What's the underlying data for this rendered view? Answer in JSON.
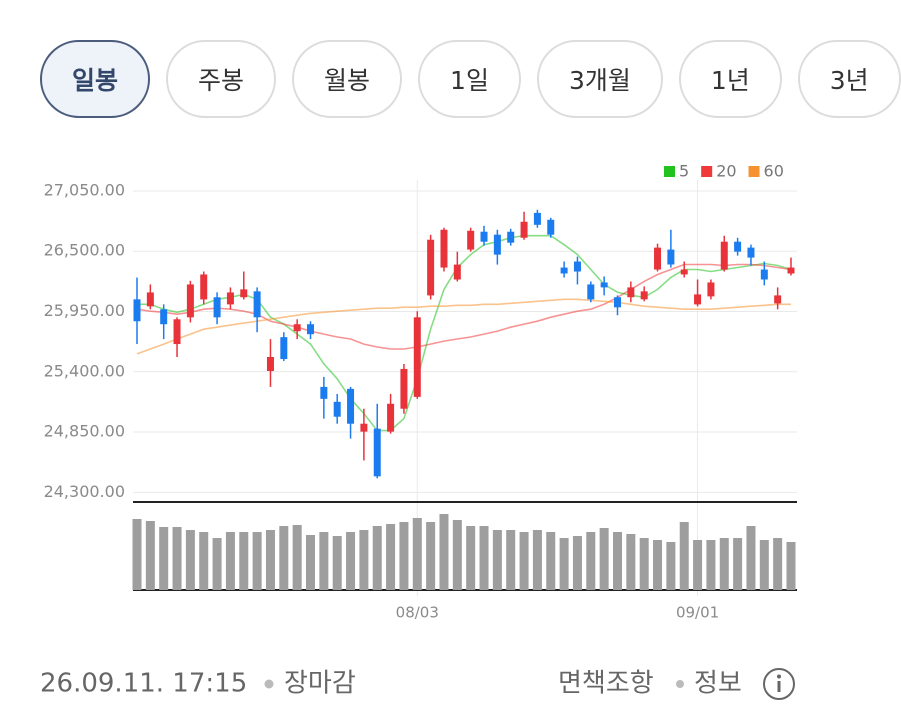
{
  "tabs": [
    {
      "label": "일봉",
      "selected": true
    },
    {
      "label": "주봉",
      "selected": false
    },
    {
      "label": "월봉",
      "selected": false
    },
    {
      "label": "1일",
      "selected": false
    },
    {
      "label": "3개월",
      "selected": false
    },
    {
      "label": "1년",
      "selected": false
    },
    {
      "label": "3년",
      "selected": false
    }
  ],
  "chart_data": {
    "type": "candlestick",
    "categories": [
      null,
      null,
      null,
      null,
      null,
      null,
      null,
      null,
      null,
      null,
      null,
      null,
      null,
      null,
      null,
      null,
      null,
      null,
      null,
      null,
      null,
      "08/03",
      null,
      null,
      null,
      null,
      null,
      null,
      null,
      null,
      null,
      null,
      null,
      null,
      null,
      null,
      null,
      null,
      null,
      null,
      null,
      null,
      "09/01",
      null,
      null,
      null,
      null,
      null,
      null,
      null
    ],
    "open": [
      26061,
      25997,
      25970,
      25653,
      25897,
      26060,
      26080,
      26015,
      26080,
      26134,
      25407,
      25716,
      25770,
      25834,
      25262,
      25126,
      25244,
      24854,
      24881,
      24854,
      25063,
      25171,
      26097,
      26351,
      26242,
      26515,
      26678,
      26651,
      26678,
      26623,
      26850,
      26787,
      26351,
      26406,
      26197,
      26215,
      26080,
      26080,
      26061,
      26333,
      26515,
      26288,
      26015,
      26088,
      26333,
      26587,
      26533,
      26333,
      26024,
      26297
    ],
    "high": [
      26260,
      26197,
      26015,
      25897,
      26230,
      26315,
      26125,
      26170,
      26315,
      26170,
      25698,
      25761,
      25879,
      25861,
      25353,
      25198,
      25262,
      25063,
      25108,
      25198,
      25471,
      25952,
      26650,
      26714,
      26496,
      26714,
      26732,
      26696,
      26705,
      26860,
      26878,
      26805,
      26406,
      26451,
      26224,
      26270,
      26097,
      26224,
      26179,
      26569,
      26696,
      26406,
      26242,
      26242,
      26641,
      26623,
      26560,
      26406,
      26170,
      26442
    ],
    "low": [
      25653,
      25970,
      25698,
      25535,
      25850,
      26015,
      25834,
      25970,
      26060,
      25761,
      25262,
      25498,
      25698,
      25698,
      24972,
      24926,
      24790,
      24591,
      24428,
      24836,
      25017,
      25153,
      26060,
      26315,
      26224,
      26496,
      26551,
      26378,
      26551,
      26605,
      26714,
      26623,
      26260,
      26197,
      26034,
      26097,
      25916,
      26034,
      26043,
      26315,
      26351,
      26260,
      25997,
      26061,
      26315,
      26460,
      26369,
      26188,
      25970,
      26279
    ],
    "close": [
      25861,
      26124,
      25834,
      25879,
      26197,
      26288,
      25897,
      26124,
      26152,
      25897,
      25535,
      25516,
      25834,
      25743,
      25153,
      24990,
      24926,
      24926,
      24446,
      25108,
      25426,
      25897,
      26605,
      26696,
      26378,
      26687,
      26587,
      26469,
      26578,
      26769,
      26741,
      26651,
      26297,
      26315,
      26061,
      26170,
      25988,
      26170,
      26134,
      26533,
      26379,
      26333,
      26106,
      26215,
      26587,
      26496,
      26442,
      26242,
      26097,
      26351
    ],
    "up_color": "#e8333b",
    "down_color": "#1b7cf0",
    "series": [
      {
        "name": "5",
        "color": "#22c31f",
        "values": [
          26016,
          26016,
          25971,
          25943,
          25971,
          26016,
          26061,
          26080,
          26107,
          26061,
          25898,
          25835,
          25744,
          25653,
          25472,
          25336,
          25154,
          25018,
          24864,
          24864,
          24973,
          25336,
          25789,
          26152,
          26352,
          26470,
          26560,
          26587,
          26624,
          26642,
          26642,
          26642,
          26560,
          26470,
          26333,
          26197,
          26125,
          26098,
          26080,
          26152,
          26261,
          26333,
          26333,
          26315,
          26333,
          26352,
          26370,
          26388,
          26370,
          26333
        ]
      },
      {
        "name": "20",
        "color": "#f03a3a",
        "values": [
          25971,
          25953,
          25943,
          25925,
          25943,
          25971,
          25980,
          25971,
          25953,
          25925,
          25862,
          25835,
          25807,
          25771,
          25744,
          25717,
          25699,
          25653,
          25626,
          25608,
          25608,
          25626,
          25653,
          25680,
          25699,
          25717,
          25744,
          25771,
          25807,
          25835,
          25862,
          25898,
          25925,
          25953,
          25971,
          26016,
          26080,
          26152,
          26225,
          26288,
          26333,
          26379,
          26379,
          26379,
          26370,
          26379,
          26379,
          26370,
          26352,
          26333
        ]
      },
      {
        "name": "60",
        "color": "#f5922e",
        "values": [
          25563,
          25608,
          25653,
          25699,
          25744,
          25789,
          25807,
          25826,
          25844,
          25862,
          25880,
          25898,
          25916,
          25934,
          25943,
          25953,
          25962,
          25971,
          25980,
          25980,
          25989,
          25989,
          25998,
          25998,
          26007,
          26007,
          26016,
          26016,
          26025,
          26034,
          26043,
          26052,
          26061,
          26061,
          26052,
          26043,
          26034,
          26016,
          25998,
          25989,
          25980,
          25971,
          25971,
          25971,
          25980,
          25989,
          25998,
          26007,
          26016,
          26016
        ]
      }
    ],
    "volume": [
      71,
      69,
      63,
      63,
      60,
      58,
      52,
      58,
      58,
      58,
      60,
      64,
      65,
      55,
      58,
      54,
      58,
      60,
      64,
      66,
      68,
      72,
      68,
      76,
      70,
      64,
      64,
      60,
      60,
      58,
      60,
      58,
      52,
      54,
      58,
      62,
      58,
      56,
      52,
      50,
      48,
      68,
      50,
      50,
      52,
      52,
      64,
      50,
      52,
      48
    ],
    "volume_color": "#9e9e9e",
    "volume_ylim": [
      0,
      80
    ],
    "ylim": [
      24230,
      27150
    ],
    "yticks": [
      {
        "value": 27050,
        "label": "27,050.00"
      },
      {
        "value": 26500,
        "label": "26,500.00"
      },
      {
        "value": 25950,
        "label": "25,950.00"
      },
      {
        "value": 25400,
        "label": "25,400.00"
      },
      {
        "value": 24850,
        "label": "24,850.00"
      },
      {
        "value": 24300,
        "label": "24,300.00"
      }
    ],
    "grid": true
  },
  "footer": {
    "timestamp": "26.09.11. 17:15",
    "status": "장마감",
    "disclaimer": "면책조항",
    "info": "정보"
  }
}
